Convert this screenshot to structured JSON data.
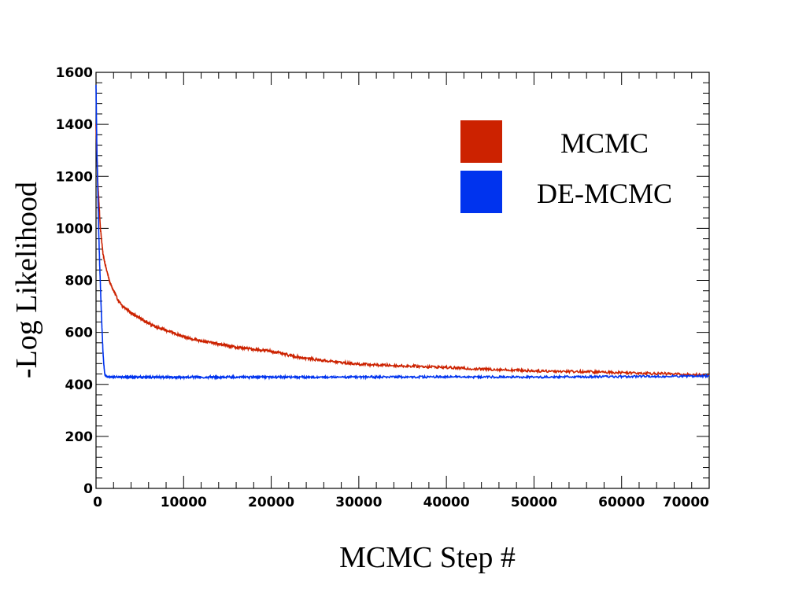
{
  "chart_data": {
    "type": "line",
    "title": "",
    "xlabel": "MCMC Step #",
    "ylabel": "-Log  Likelihood",
    "xlim": [
      0,
      70000
    ],
    "ylim": [
      0,
      1600
    ],
    "x_ticks": [
      0,
      10000,
      20000,
      30000,
      40000,
      50000,
      60000,
      70000
    ],
    "y_ticks": [
      0,
      200,
      400,
      600,
      800,
      1000,
      1200,
      1400,
      1600
    ],
    "grid": false,
    "legend_position": "top-right",
    "series": [
      {
        "name": "MCMC",
        "color": "#cc2200",
        "x": [
          0,
          200,
          500,
          800,
          1200,
          1600,
          2000,
          2500,
          3000,
          3500,
          4000,
          5000,
          6000,
          7000,
          8000,
          9000,
          10000,
          12000,
          14000,
          16000,
          18000,
          20000,
          22000,
          24000,
          26000,
          28000,
          30000,
          32000,
          35000,
          38000,
          40000,
          43000,
          46000,
          50000,
          54000,
          58000,
          62000,
          66000,
          70000
        ],
        "y": [
          1400,
          1180,
          1000,
          900,
          840,
          790,
          760,
          725,
          700,
          690,
          675,
          655,
          635,
          620,
          608,
          596,
          582,
          568,
          555,
          543,
          535,
          528,
          512,
          500,
          492,
          484,
          478,
          475,
          471,
          468,
          465,
          460,
          457,
          452,
          450,
          447,
          444,
          440,
          435
        ]
      },
      {
        "name": "DE-MCMC",
        "color": "#0033ee",
        "x": [
          0,
          100,
          200,
          300,
          400,
          500,
          600,
          700,
          800,
          900,
          1000,
          1200,
          1500,
          2000,
          5000,
          10000,
          20000,
          30000,
          40000,
          50000,
          60000,
          70000
        ],
        "y": [
          1550,
          1300,
          1150,
          1000,
          880,
          780,
          680,
          600,
          520,
          470,
          440,
          430,
          428,
          428,
          428,
          428,
          428,
          428,
          429,
          428,
          430,
          432
        ]
      }
    ]
  }
}
